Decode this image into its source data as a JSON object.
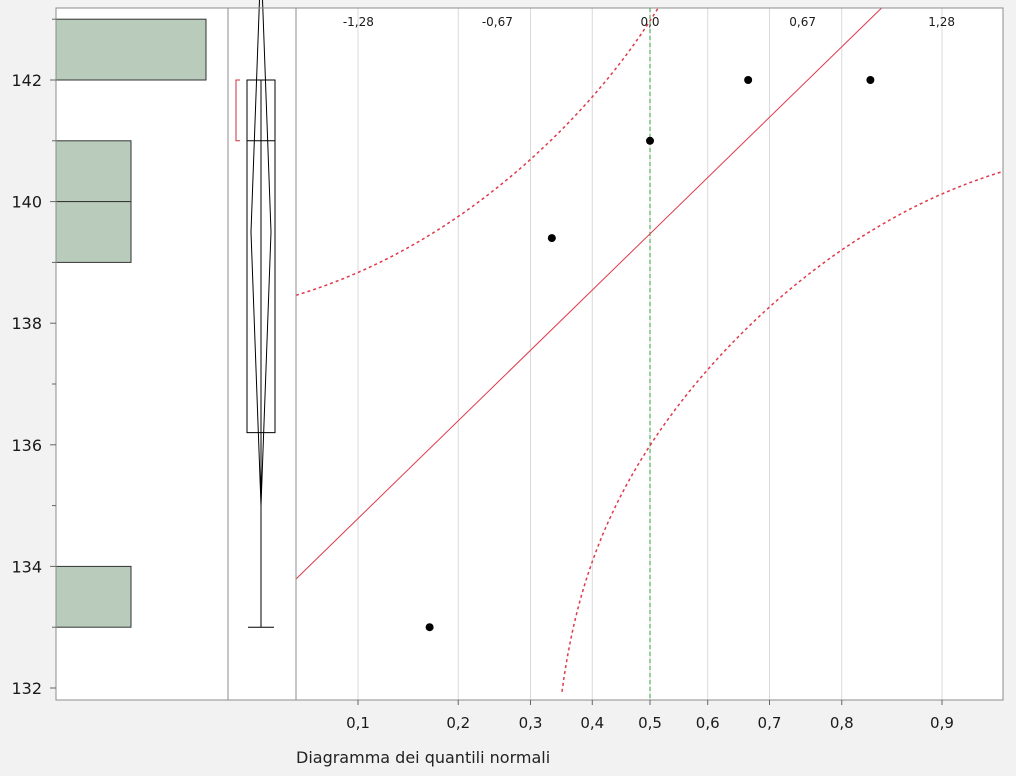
{
  "chart_data": {
    "type": "scatter",
    "ylim": [
      131.8,
      143.2
    ],
    "y_ticks": [
      "132",
      "134",
      "136",
      "138",
      "140",
      "142"
    ],
    "histogram": {
      "bars": [
        {
          "lo": 142,
          "hi": 143,
          "count": 2
        },
        {
          "lo": 140,
          "hi": 141,
          "count": 1
        },
        {
          "lo": 139,
          "hi": 140,
          "count": 1
        },
        {
          "lo": 133,
          "hi": 134,
          "count": 1
        }
      ],
      "fill_color": "#b9cbbb"
    },
    "box_plot": {
      "min": 133.0,
      "q1": 136.2,
      "median": 141.0,
      "q3": 142.0,
      "max": 142.0,
      "mean": 139.5,
      "mean_ci": [
        135.0,
        144.0
      ],
      "shortest_half": [
        141.0,
        142.0
      ],
      "shortest_half_color": "#c8333e"
    },
    "quantile_plot": {
      "xlabel": "Diagramma dei quantili normali",
      "prob_ticks": [
        "0,1",
        "0,2",
        "0,3",
        "0,4",
        "0,5",
        "0,6",
        "0,7",
        "0,8",
        "0,9"
      ],
      "prob_values": [
        0.1,
        0.2,
        0.3,
        0.4,
        0.5,
        0.6,
        0.7,
        0.8,
        0.9
      ],
      "z_ticks": [
        "-1,28",
        "-0,67",
        "0,0",
        "0,67",
        "1,28"
      ],
      "z_values": [
        -1.28,
        -0.67,
        0.0,
        0.67,
        1.28
      ],
      "points": [
        {
          "p": 0.1667,
          "y": 133.0
        },
        {
          "p": 0.3333,
          "y": 139.4
        },
        {
          "p": 0.5,
          "y": 141.0
        },
        {
          "p": 0.6667,
          "y": 142.0
        },
        {
          "p": 0.8333,
          "y": 142.0
        }
      ],
      "fit_line": {
        "mean": 139.48,
        "sd": 3.66,
        "color": "#e0394a"
      },
      "confidence_band_color": "#e0394a",
      "center_line_color": "#2aa33a",
      "point_color": "#000000"
    }
  }
}
